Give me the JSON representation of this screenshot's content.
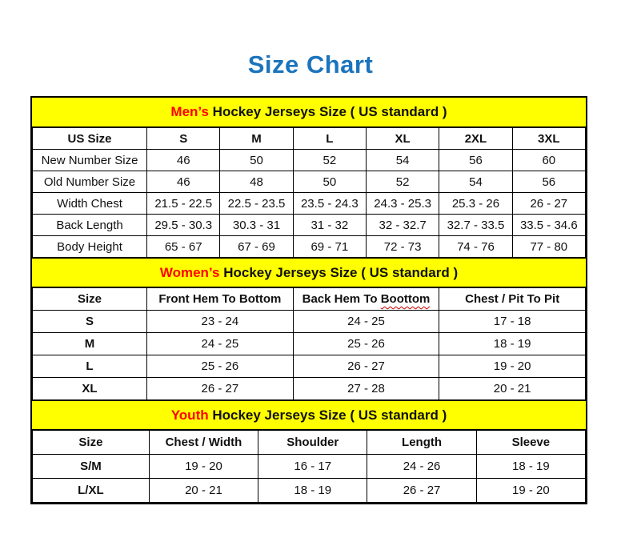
{
  "page": {
    "title": "Size Chart"
  },
  "colors": {
    "title_blue": "#1b74bc",
    "banner_yellow": "#ffff00",
    "accent_red": "#ff0000",
    "grid_black": "#000000",
    "background": "#ffffff"
  },
  "chart_data": [
    {
      "type": "table",
      "section": "men",
      "title": "Men’s Hockey Jerseys Size ( US standard )",
      "title_highlight": "Men’s",
      "title_rest": " Hockey Jerseys Size ( US standard )",
      "columns": [
        "US Size",
        "S",
        "M",
        "L",
        "XL",
        "2XL",
        "3XL"
      ],
      "rows": [
        [
          "New Number Size",
          "46",
          "50",
          "52",
          "54",
          "56",
          "60"
        ],
        [
          "Old Number Size",
          "46",
          "48",
          "50",
          "52",
          "54",
          "56"
        ],
        [
          "Width Chest",
          "21.5 - 22.5",
          "22.5 - 23.5",
          "23.5 - 24.3",
          "24.3 - 25.3",
          "25.3 - 26",
          "26 - 27"
        ],
        [
          "Back Length",
          "29.5 - 30.3",
          "30.3 - 31",
          "31 - 32",
          "32 - 32.7",
          "32.7 - 33.5",
          "33.5 - 34.6"
        ],
        [
          "Body Height",
          "65 - 67",
          "67 - 69",
          "69 - 71",
          "72 - 73",
          "74 - 76",
          "77 - 80"
        ]
      ]
    },
    {
      "type": "table",
      "section": "women",
      "title": "Women’s Hockey Jerseys Size ( US standard )",
      "title_highlight": "Women’s",
      "title_rest": " Hockey Jerseys Size ( US standard )",
      "columns": [
        "Size",
        "Front Hem To Bottom",
        "Back Hem To Boottom",
        "Chest / Pit To Pit"
      ],
      "misspelling": {
        "prefix": "Back Hem To ",
        "typo_word": "Boottom"
      },
      "rows": [
        [
          "S",
          "23 - 24",
          "24 - 25",
          "17 - 18"
        ],
        [
          "M",
          "24 - 25",
          "25 - 26",
          "18 - 19"
        ],
        [
          "L",
          "25 - 26",
          "26 - 27",
          "19 - 20"
        ],
        [
          "XL",
          "26 - 27",
          "27 - 28",
          "20 - 21"
        ]
      ]
    },
    {
      "type": "table",
      "section": "youth",
      "title": "Youth Hockey Jerseys Size ( US standard )",
      "title_highlight": "Youth",
      "title_rest": " Hockey Jerseys Size ( US standard )",
      "columns": [
        "Size",
        "Chest / Width",
        "Shoulder",
        "Length",
        "Sleeve"
      ],
      "rows": [
        [
          "S/M",
          "19 - 20",
          "16 - 17",
          "24 - 26",
          "18 - 19"
        ],
        [
          "L/XL",
          "20 - 21",
          "18 - 19",
          "26 - 27",
          "19 - 20"
        ]
      ]
    }
  ]
}
